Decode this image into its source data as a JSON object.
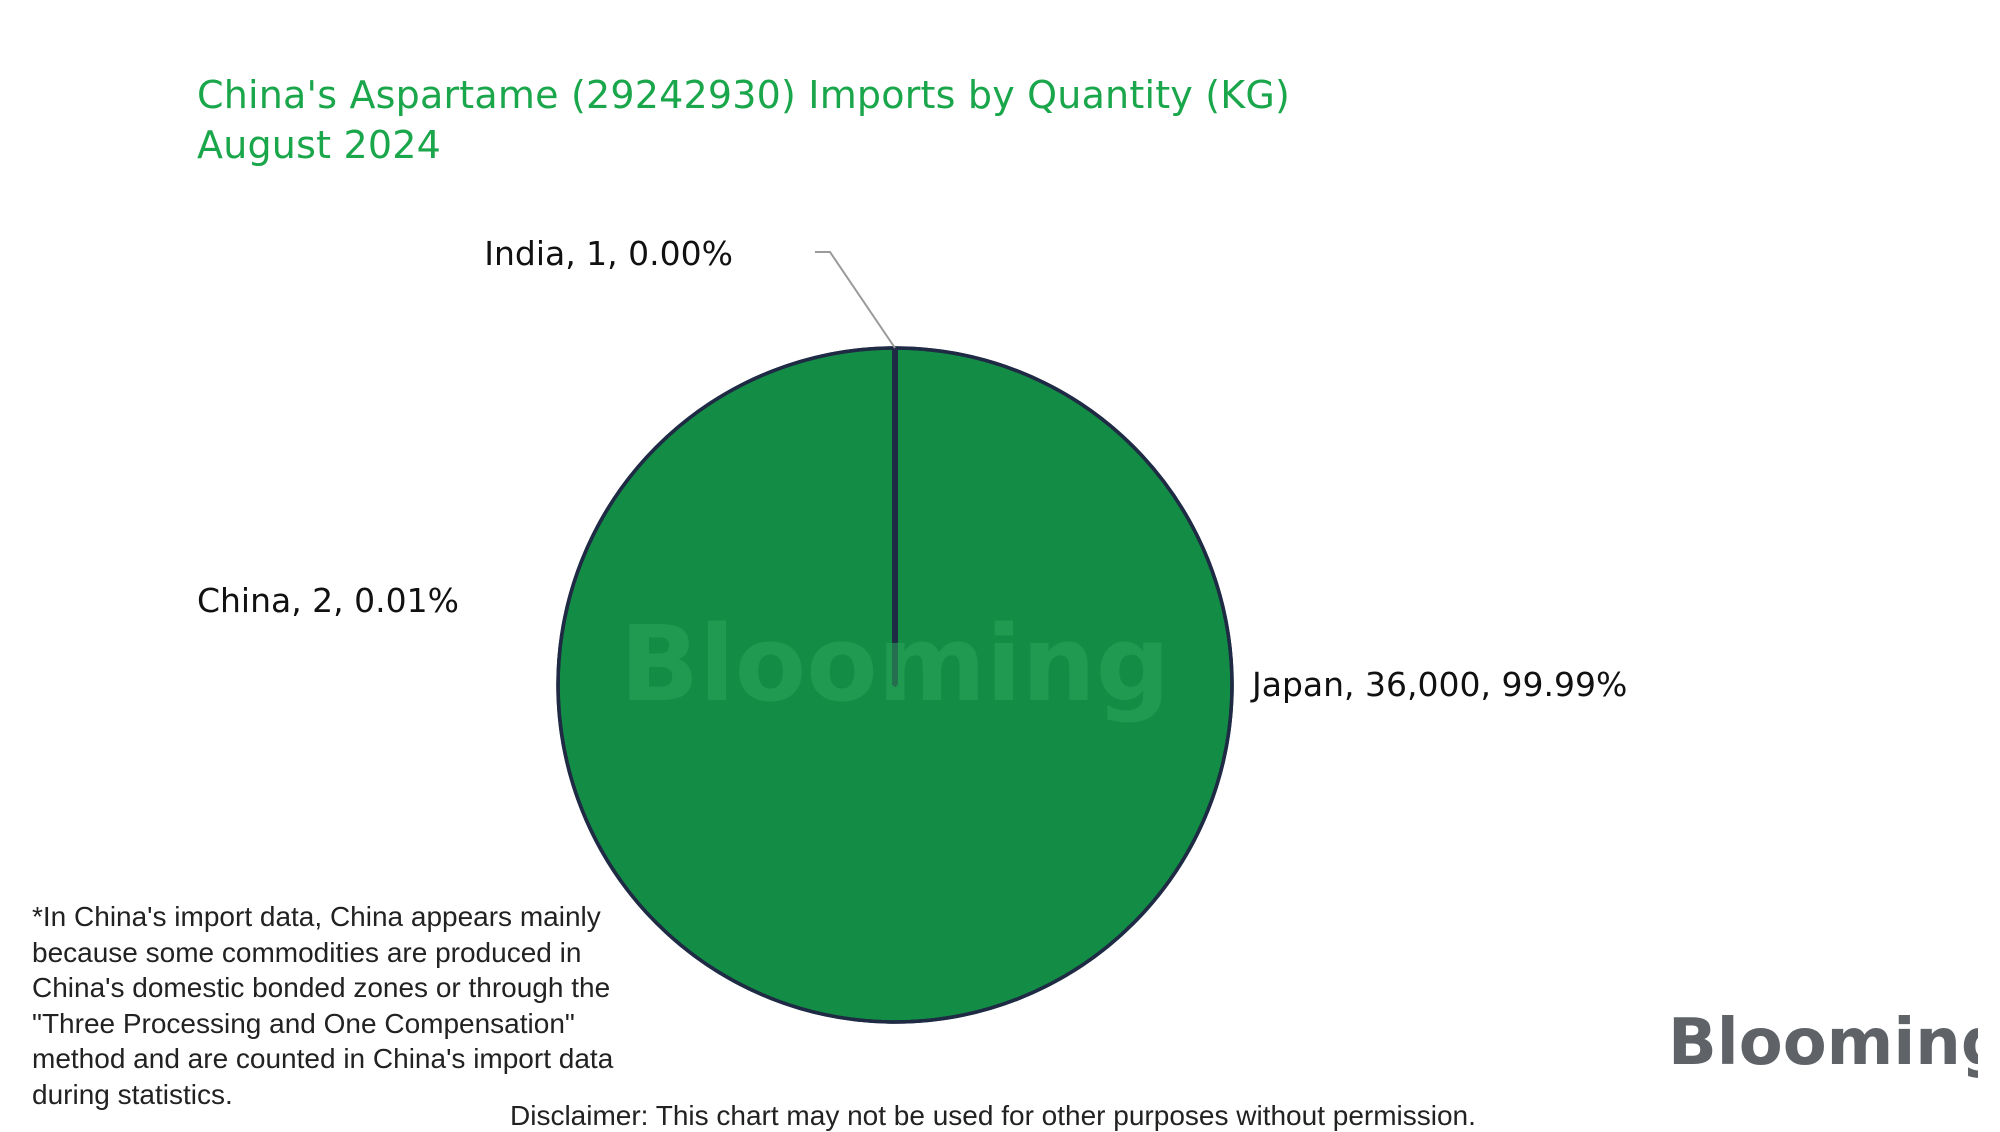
{
  "chart_data": {
    "type": "pie",
    "title": "China's Aspartame (29242930) Imports by Quantity (KG)",
    "subtitle": "August 2024",
    "slices": [
      {
        "name": "Japan",
        "value": 36000,
        "percent": "99.99%",
        "label": "Japan, 36,000, 99.99%"
      },
      {
        "name": "China",
        "value": 2,
        "percent": "0.01%",
        "label": "China, 2, 0.01%"
      },
      {
        "name": "India",
        "value": 1,
        "percent": "0.00%",
        "label": "India, 1, 0.00%"
      }
    ],
    "colors": {
      "slice_fill": "#138c45",
      "slice_border": "#1f2a44",
      "title": "#1aa64a"
    }
  },
  "watermark": "Blooming",
  "logo": "Blooming",
  "note": "*In China's import data, China appears mainly because some commodities are produced in China's domestic bonded zones or through the \"Three Processing and One Compensation\" method and are counted in China's import data during statistics.",
  "disclaimer": "Disclaimer: This chart may not be used for other purposes without permission."
}
